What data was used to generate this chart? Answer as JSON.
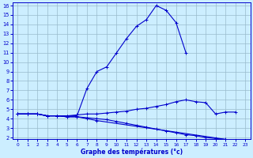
{
  "xlabel": "Graphe des températures (°c)",
  "bg_color": "#cceeff",
  "line_color": "#0000cc",
  "grid_color": "#99bbcc",
  "hours": [
    0,
    1,
    2,
    3,
    4,
    5,
    6,
    7,
    8,
    9,
    10,
    11,
    12,
    13,
    14,
    15,
    16,
    17,
    18,
    19,
    20,
    21,
    22,
    23
  ],
  "line_peak": [
    4.5,
    4.5,
    4.5,
    4.3,
    4.3,
    4.3,
    4.3,
    7.2,
    9.0,
    9.5,
    11.0,
    12.5,
    13.8,
    14.5,
    16.0,
    15.5,
    14.2,
    11.0,
    null,
    null,
    null,
    null,
    null,
    null
  ],
  "line_flat": [
    4.5,
    4.5,
    4.5,
    4.3,
    4.3,
    4.3,
    4.4,
    4.5,
    4.5,
    4.6,
    4.7,
    4.8,
    5.0,
    5.1,
    5.3,
    5.5,
    5.8,
    6.0,
    5.8,
    5.7,
    4.5,
    4.7,
    4.7,
    null
  ],
  "line_drop": [
    4.5,
    4.5,
    4.5,
    4.3,
    4.3,
    4.2,
    4.2,
    4.1,
    4.0,
    3.9,
    3.7,
    3.5,
    3.3,
    3.1,
    2.9,
    2.7,
    2.5,
    2.3,
    2.2,
    2.0,
    1.9,
    1.8,
    1.7,
    null
  ],
  "line_bot": [
    4.5,
    4.5,
    4.5,
    4.3,
    4.3,
    4.2,
    4.2,
    4.0,
    3.8,
    null,
    null,
    null,
    null,
    null,
    null,
    null,
    null,
    null,
    null,
    null,
    null,
    null,
    null,
    1.5
  ],
  "ylim": [
    2,
    16
  ],
  "xlim": [
    0,
    23
  ],
  "yticks": [
    2,
    3,
    4,
    5,
    6,
    7,
    8,
    9,
    10,
    11,
    12,
    13,
    14,
    15,
    16
  ],
  "xticks": [
    0,
    1,
    2,
    3,
    4,
    5,
    6,
    7,
    8,
    9,
    10,
    11,
    12,
    13,
    14,
    15,
    16,
    17,
    18,
    19,
    20,
    21,
    22,
    23
  ]
}
